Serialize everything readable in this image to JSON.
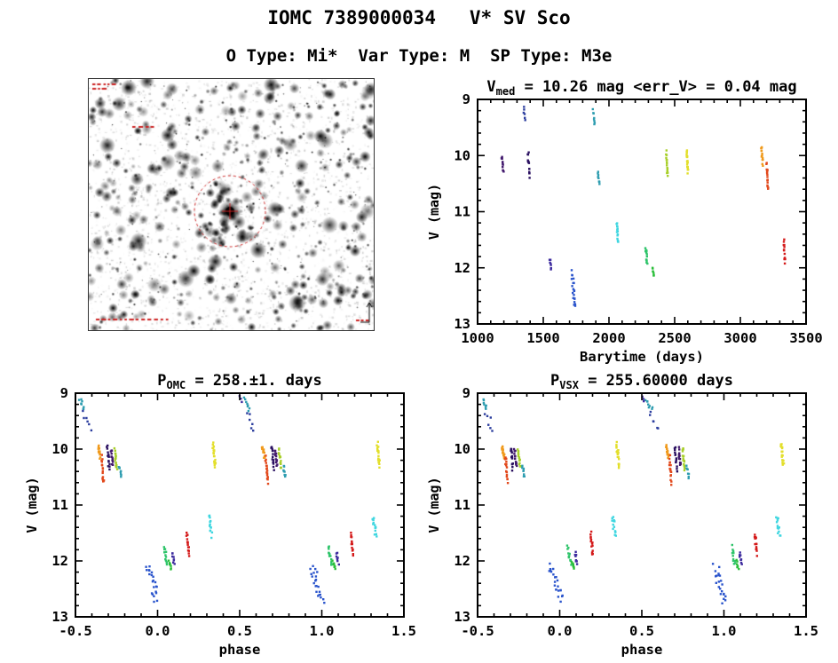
{
  "page": {
    "title": "IOMC 7389000034   V* SV Sco",
    "subtitle": "O Type: Mi*  Var Type: M  SP Type: M3e"
  },
  "finder": {
    "annotation_color": "#cc2222"
  },
  "chart_data": [
    {
      "id": "lightcurve",
      "type": "scatter",
      "title_pre": "V",
      "title_sub": "med",
      "title_post": " = 10.26 mag <err_V> = 0.04 mag",
      "xlabel": "Barytime (days)",
      "ylabel": "V (mag)",
      "xlim": [
        1000,
        3500
      ],
      "ylim": [
        9,
        13
      ],
      "y_inverted": true,
      "grid": false,
      "xticks": [
        1000,
        1500,
        2000,
        2500,
        3000,
        3500
      ],
      "xtick_labels": [
        "1000",
        "1500",
        "2000",
        "2500",
        "3000",
        "3500"
      ],
      "yticks": [
        9,
        10,
        11,
        12,
        13
      ],
      "ytick_labels": [
        "9",
        "10",
        "11",
        "12",
        "13"
      ],
      "x_minor": 100,
      "y_minor": 0.2,
      "phase_repeat": false,
      "clusters": [
        {
          "x": 1190,
          "v": [
            10.0,
            10.3
          ],
          "n": 12,
          "color": "#431a6e",
          "dx": 12
        },
        {
          "x": 1355,
          "v": [
            9.15,
            9.35
          ],
          "n": 6,
          "color": "#2c3e9e",
          "dx": 10
        },
        {
          "x": 1390,
          "v": [
            9.95,
            10.35
          ],
          "n": 14,
          "color": "#2a1060",
          "dx": 12
        },
        {
          "x": 1555,
          "v": [
            11.85,
            12.05
          ],
          "n": 8,
          "color": "#3d2b9e",
          "dx": 10
        },
        {
          "x": 1730,
          "v": [
            12.1,
            12.7
          ],
          "n": 22,
          "color": "#2b55cc",
          "dx": 20
        },
        {
          "x": 1885,
          "v": [
            9.2,
            9.45
          ],
          "n": 8,
          "color": "#2e9db0",
          "dx": 10
        },
        {
          "x": 1920,
          "v": [
            10.3,
            10.5
          ],
          "n": 8,
          "color": "#2e9db0",
          "dx": 10
        },
        {
          "x": 2065,
          "v": [
            11.2,
            11.55
          ],
          "n": 14,
          "color": "#3fd6e0",
          "dx": 14
        },
        {
          "x": 2285,
          "v": [
            11.65,
            11.95
          ],
          "n": 12,
          "color": "#2ec46a",
          "dx": 12
        },
        {
          "x": 2335,
          "v": [
            12.0,
            12.15
          ],
          "n": 7,
          "color": "#2bbf3a",
          "dx": 10
        },
        {
          "x": 2440,
          "v": [
            9.95,
            10.35
          ],
          "n": 16,
          "color": "#a8cf2a",
          "dx": 10
        },
        {
          "x": 2595,
          "v": [
            9.9,
            10.3
          ],
          "n": 20,
          "color": "#e3df2c",
          "dx": 12
        },
        {
          "x": 3165,
          "v": [
            9.85,
            10.15
          ],
          "n": 14,
          "color": "#f09a1c",
          "dx": 10
        },
        {
          "x": 3205,
          "v": [
            10.15,
            10.6
          ],
          "n": 16,
          "color": "#e2491c",
          "dx": 10
        },
        {
          "x": 3335,
          "v": [
            11.5,
            11.9
          ],
          "n": 14,
          "color": "#d41a1a",
          "dx": 10
        }
      ]
    },
    {
      "id": "phase_omc",
      "type": "scatter",
      "title_pre": "P",
      "title_sub": "OMC",
      "title_post": " = 258.±1. days",
      "xlabel": "phase",
      "ylabel": "V (mag)",
      "xlim": [
        -0.5,
        1.5
      ],
      "ylim": [
        9,
        13
      ],
      "y_inverted": true,
      "grid": false,
      "xticks": [
        -0.5,
        0.0,
        0.5,
        1.0,
        1.5
      ],
      "xtick_labels": [
        "-0.5",
        "0.0",
        "0.5",
        "1.0",
        "1.5"
      ],
      "yticks": [
        9,
        10,
        11,
        12,
        13
      ],
      "ytick_labels": [
        "9",
        "10",
        "11",
        "12",
        "13"
      ],
      "x_minor": 0.1,
      "y_minor": 0.2,
      "phase_repeat": true,
      "clusters": [
        {
          "x": -0.46,
          "v": [
            9.1,
            9.3
          ],
          "n": 8,
          "color": "#2e9db0",
          "dx": 0.03
        },
        {
          "x": -0.43,
          "v": [
            9.35,
            9.65
          ],
          "n": 6,
          "color": "#2c3e9e",
          "dx": 0.04
        },
        {
          "x": -0.355,
          "v": [
            9.95,
            10.15
          ],
          "n": 14,
          "color": "#f09a1c",
          "dx": 0.012
        },
        {
          "x": -0.335,
          "v": [
            10.15,
            10.6
          ],
          "n": 16,
          "color": "#e2491c",
          "dx": 0.012
        },
        {
          "x": -0.3,
          "v": [
            9.95,
            10.35
          ],
          "n": 14,
          "color": "#2a1060",
          "dx": 0.012
        },
        {
          "x": -0.278,
          "v": [
            10.0,
            10.3
          ],
          "n": 12,
          "color": "#431a6e",
          "dx": 0.012
        },
        {
          "x": -0.255,
          "v": [
            10.0,
            10.35
          ],
          "n": 16,
          "color": "#a8cf2a",
          "dx": 0.012
        },
        {
          "x": -0.228,
          "v": [
            10.3,
            10.5
          ],
          "n": 8,
          "color": "#2e9db0",
          "dx": 0.012
        },
        {
          "x": -0.03,
          "v": [
            12.1,
            12.7
          ],
          "n": 22,
          "color": "#2b55cc",
          "dx": 0.055
        },
        {
          "x": 0.05,
          "v": [
            11.75,
            12.05
          ],
          "n": 12,
          "color": "#2ec46a",
          "dx": 0.015
        },
        {
          "x": 0.075,
          "v": [
            12.0,
            12.15
          ],
          "n": 7,
          "color": "#2bbf3a",
          "dx": 0.012
        },
        {
          "x": 0.095,
          "v": [
            11.85,
            12.05
          ],
          "n": 8,
          "color": "#3d2b9e",
          "dx": 0.012
        },
        {
          "x": 0.185,
          "v": [
            11.5,
            11.9
          ],
          "n": 14,
          "color": "#d41a1a",
          "dx": 0.012
        },
        {
          "x": 0.32,
          "v": [
            11.2,
            11.55
          ],
          "n": 14,
          "color": "#3fd6e0",
          "dx": 0.018
        },
        {
          "x": 0.345,
          "v": [
            9.9,
            10.3
          ],
          "n": 20,
          "color": "#e3df2c",
          "dx": 0.014
        },
        {
          "x": 0.505,
          "v": [
            9.05,
            9.15
          ],
          "n": 3,
          "color": "#3d2b9e",
          "dx": 0.01
        }
      ]
    },
    {
      "id": "phase_vsx",
      "type": "scatter",
      "title_pre": "P",
      "title_sub": "VSX",
      "title_post": " = 255.60000 days",
      "xlabel": "phase",
      "ylabel": "V (mag)",
      "xlim": [
        -0.5,
        1.5
      ],
      "ylim": [
        9,
        13
      ],
      "y_inverted": true,
      "grid": false,
      "xticks": [
        -0.5,
        0.0,
        0.5,
        1.0,
        1.5
      ],
      "xtick_labels": [
        "-0.5",
        "0.0",
        "0.5",
        "1.0",
        "1.5"
      ],
      "yticks": [
        9,
        10,
        11,
        12,
        13
      ],
      "ytick_labels": [
        "9",
        "10",
        "11",
        "12",
        "13"
      ],
      "x_minor": 0.1,
      "y_minor": 0.2,
      "phase_repeat": true,
      "clusters": [
        {
          "x": -0.455,
          "v": [
            9.1,
            9.3
          ],
          "n": 8,
          "color": "#2e9db0",
          "dx": 0.03
        },
        {
          "x": -0.425,
          "v": [
            9.35,
            9.65
          ],
          "n": 6,
          "color": "#2c3e9e",
          "dx": 0.04
        },
        {
          "x": -0.345,
          "v": [
            9.95,
            10.15
          ],
          "n": 14,
          "color": "#f09a1c",
          "dx": 0.012
        },
        {
          "x": -0.325,
          "v": [
            10.15,
            10.6
          ],
          "n": 16,
          "color": "#e2491c",
          "dx": 0.012
        },
        {
          "x": -0.292,
          "v": [
            9.95,
            10.35
          ],
          "n": 14,
          "color": "#2a1060",
          "dx": 0.012
        },
        {
          "x": -0.27,
          "v": [
            10.0,
            10.3
          ],
          "n": 12,
          "color": "#431a6e",
          "dx": 0.012
        },
        {
          "x": -0.246,
          "v": [
            10.0,
            10.35
          ],
          "n": 16,
          "color": "#a8cf2a",
          "dx": 0.012
        },
        {
          "x": -0.22,
          "v": [
            10.3,
            10.5
          ],
          "n": 8,
          "color": "#2e9db0",
          "dx": 0.012
        },
        {
          "x": -0.022,
          "v": [
            12.1,
            12.7
          ],
          "n": 22,
          "color": "#2b55cc",
          "dx": 0.055
        },
        {
          "x": 0.058,
          "v": [
            11.75,
            12.05
          ],
          "n": 12,
          "color": "#2ec46a",
          "dx": 0.015
        },
        {
          "x": 0.082,
          "v": [
            12.0,
            12.15
          ],
          "n": 7,
          "color": "#2bbf3a",
          "dx": 0.012
        },
        {
          "x": 0.1,
          "v": [
            11.85,
            12.05
          ],
          "n": 8,
          "color": "#3d2b9e",
          "dx": 0.012
        },
        {
          "x": 0.195,
          "v": [
            11.5,
            11.9
          ],
          "n": 14,
          "color": "#d41a1a",
          "dx": 0.012
        },
        {
          "x": 0.33,
          "v": [
            11.2,
            11.55
          ],
          "n": 14,
          "color": "#3fd6e0",
          "dx": 0.018
        },
        {
          "x": 0.355,
          "v": [
            9.9,
            10.3
          ],
          "n": 20,
          "color": "#e3df2c",
          "dx": 0.014
        },
        {
          "x": 0.51,
          "v": [
            9.05,
            9.15
          ],
          "n": 3,
          "color": "#3d2b9e",
          "dx": 0.01
        }
      ]
    }
  ]
}
